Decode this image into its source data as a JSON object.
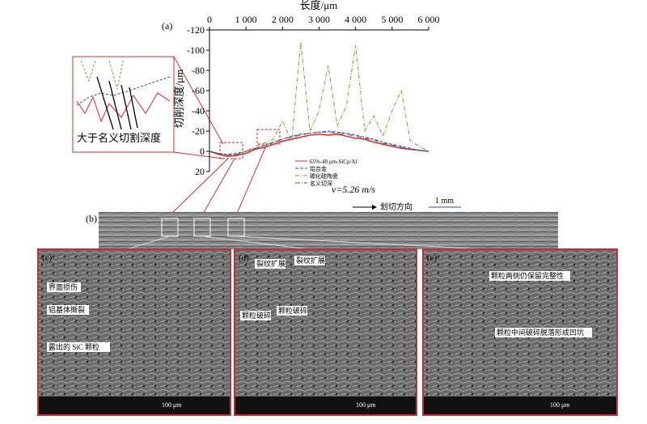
{
  "chart_data": {
    "type": "line",
    "panel_label": "(a)",
    "x_label": "长度/μm",
    "y_label": "切削深度/μm",
    "x": [
      0,
      250,
      500,
      750,
      1000,
      1250,
      1500,
      1750,
      2000,
      2250,
      2500,
      2750,
      3000,
      3250,
      3500,
      3750,
      4000,
      4250,
      4500,
      4750,
      5000,
      5250,
      5500,
      5750,
      6000
    ],
    "series": [
      {
        "name": "65%-40 μm-SiCp/Al",
        "color": "#e8202a",
        "dash": "none",
        "values": [
          0,
          3,
          5,
          4,
          2,
          -2,
          -4,
          -7,
          -10,
          -12,
          -14,
          -16,
          -17,
          -16,
          -17,
          -15,
          -13,
          -12,
          -9,
          -7,
          -5,
          -3,
          -2,
          -1,
          0
        ]
      },
      {
        "name": "铝合金",
        "color": "#2e4fa3",
        "dash": "4 2",
        "values": [
          0,
          2,
          3,
          2,
          0,
          -3,
          -6,
          -9,
          -12,
          -15,
          -17,
          -18,
          -19,
          -20,
          -19,
          -18,
          -16,
          -14,
          -12,
          -9,
          -7,
          -5,
          -3,
          -1,
          0
        ]
      },
      {
        "name": "碳化硅陶瓷",
        "color": "#7f9a3a",
        "dash": "5 2 1 2",
        "values": [
          0,
          2,
          4,
          3,
          0,
          -5,
          -8,
          -12,
          -30,
          -10,
          -108,
          -20,
          -40,
          -85,
          -25,
          -45,
          -105,
          -20,
          -35,
          -15,
          -40,
          -60,
          -10,
          -5,
          0
        ]
      },
      {
        "name": "名义切深",
        "color": "#555555",
        "dash": "6 2 1 2",
        "values": [
          0,
          2,
          4,
          3,
          0,
          -3,
          -6,
          -9,
          -12,
          -14,
          -16,
          -18,
          -19,
          -19,
          -18,
          -17,
          -15,
          -13,
          -11,
          -8,
          -6,
          -4,
          -2,
          -1,
          0
        ]
      }
    ],
    "xlim": [
      0,
      6000
    ],
    "xticks": [
      {
        "value": 0,
        "label": "0"
      },
      {
        "value": 1000,
        "label": "1 000"
      },
      {
        "value": 2000,
        "label": "2 000"
      },
      {
        "value": 3000,
        "label": "3 000"
      },
      {
        "value": 4000,
        "label": "4 000"
      },
      {
        "value": 5000,
        "label": "5 000"
      },
      {
        "value": 6000,
        "label": "6 000"
      }
    ],
    "ylim": [
      -120,
      20
    ],
    "y_inverted": true,
    "yticks": [
      -120,
      -100,
      -80,
      -60,
      -40,
      -20,
      0,
      20
    ],
    "annotations": {
      "inset": "大于名义切割深度",
      "speed": "v=5.26 m/s"
    }
  },
  "panel_b": {
    "label": "(b)",
    "direction": "划切方向",
    "scale": "1 mm"
  },
  "panel_c": {
    "label": "(c)",
    "notes": [
      "界面损伤",
      "铝基体撕裂",
      "露出的 SiC 颗粒"
    ],
    "scale": "100 μm"
  },
  "panel_d": {
    "label": "(d)",
    "notes": [
      "裂纹扩展",
      "裂纹扩展",
      "颗粒破碎",
      "颗粒破碎"
    ],
    "scale": "100 μm"
  },
  "panel_e": {
    "label": "(e)",
    "notes": [
      "颗粒两侧仍保留完整性",
      "颗粒中间破碎脱落形成凹坑"
    ],
    "scale": "100 μm"
  }
}
